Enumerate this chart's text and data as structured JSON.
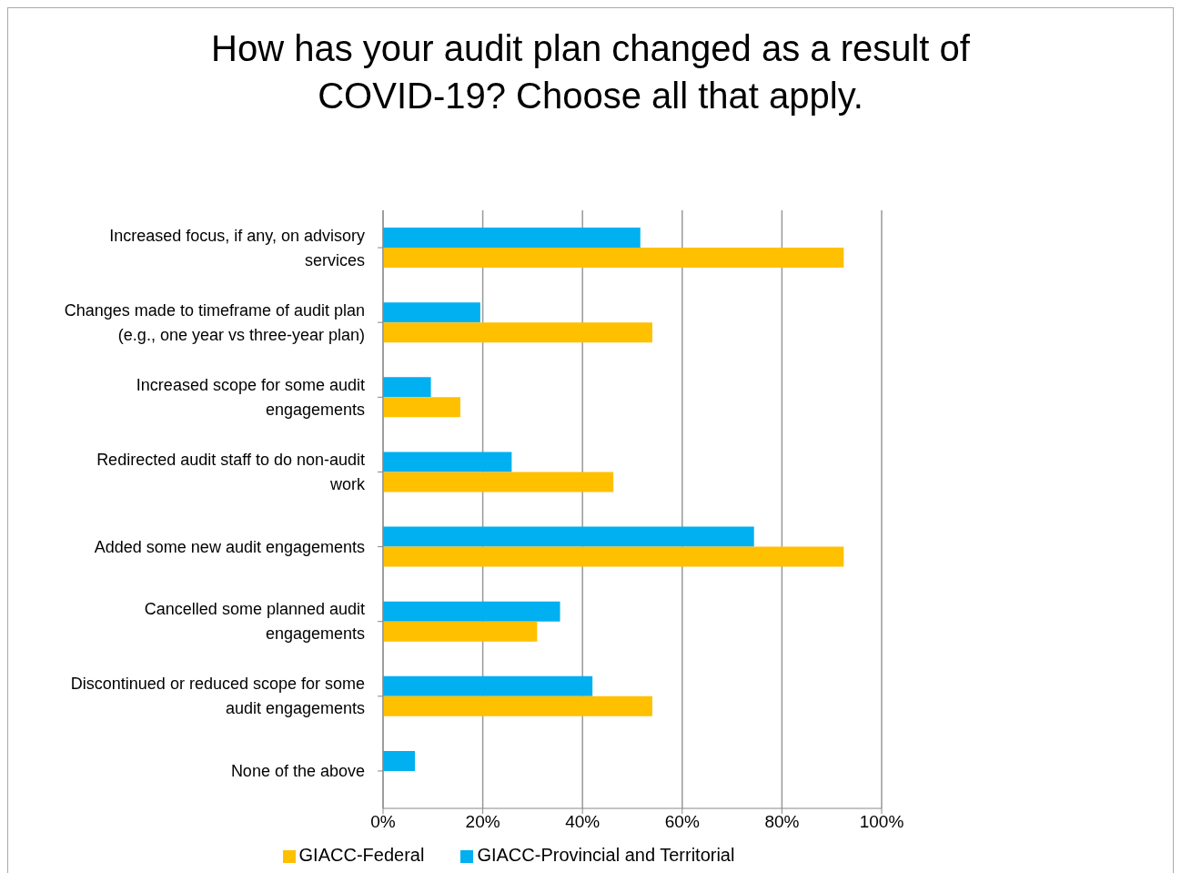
{
  "chart_data": {
    "type": "bar",
    "orientation": "horizontal",
    "title": "How has your audit plan changed as a result of COVID-19? Choose all that apply.",
    "categories": [
      "Increased focus, if any, on advisory services",
      "Changes made to timeframe of audit plan (e.g., one year vs three-year plan)",
      "Increased scope for some audit engagements",
      "Redirected audit staff to do non-audit work",
      "Added some new audit engagements",
      "Cancelled some planned audit engagements",
      "Discontinued or reduced scope for some audit engagements",
      "None of the above"
    ],
    "series": [
      {
        "name": "GIACC-Provincial and Territorial",
        "color": "#00b0f0",
        "values": [
          51.6,
          19.5,
          9.6,
          25.8,
          74.4,
          35.5,
          42,
          6.4
        ]
      },
      {
        "name": "GIACC-Federal",
        "color": "#ffc000",
        "values": [
          92.4,
          54,
          15.5,
          46.2,
          92.4,
          30.9,
          54,
          null
        ]
      }
    ],
    "xlim": [
      0,
      100
    ],
    "xticks": [
      {
        "value": 0,
        "label": "0%"
      },
      {
        "value": 20,
        "label": "20%"
      },
      {
        "value": 40,
        "label": "40%"
      },
      {
        "value": 60,
        "label": "60%"
      },
      {
        "value": 80,
        "label": "80%"
      },
      {
        "value": 100,
        "label": "100%"
      }
    ],
    "grid": "x",
    "legend": "bottom"
  }
}
